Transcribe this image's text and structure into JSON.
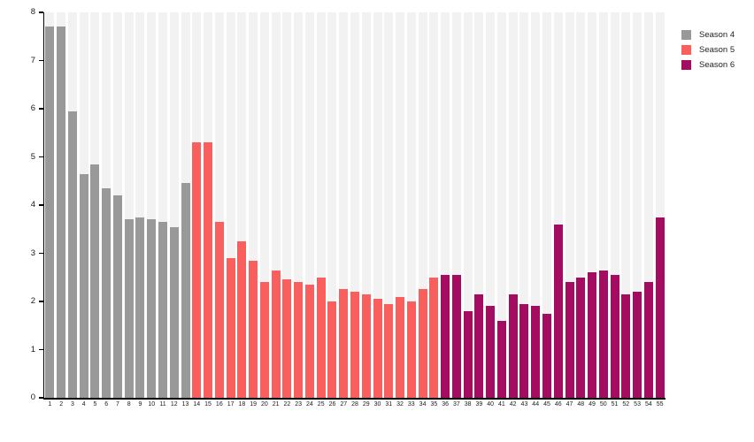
{
  "chart_data": {
    "type": "bar",
    "title": "",
    "xlabel": "",
    "ylabel": "",
    "ylim": [
      0,
      8
    ],
    "yticks": [
      0,
      1,
      2,
      3,
      4,
      5,
      6,
      7,
      8
    ],
    "grid": "striped-column-background",
    "legend_position": "top-right",
    "series": [
      {
        "name": "Season 4",
        "color": "#999999",
        "episodes": [
          1,
          2,
          3,
          4,
          5,
          6,
          7,
          8,
          9,
          10,
          11,
          12,
          13
        ],
        "values": [
          7.7,
          7.7,
          5.95,
          4.65,
          4.85,
          4.35,
          4.2,
          3.7,
          3.75,
          3.7,
          3.65,
          3.55,
          4.45
        ]
      },
      {
        "name": "Season 5",
        "color": "#f95f5c",
        "episodes": [
          14,
          15,
          16,
          17,
          18,
          19,
          20,
          21,
          22,
          23,
          24,
          25,
          26,
          27,
          28,
          29,
          30,
          31,
          32,
          33,
          34,
          35
        ],
        "values": [
          5.3,
          5.3,
          3.65,
          2.9,
          3.25,
          2.85,
          2.4,
          2.65,
          2.45,
          2.4,
          2.35,
          2.5,
          2.0,
          2.25,
          2.2,
          2.15,
          2.05,
          1.95,
          2.1,
          2.0,
          2.25,
          2.5
        ]
      },
      {
        "name": "Season 6",
        "color": "#a30c60",
        "episodes": [
          36,
          37,
          38,
          39,
          40,
          41,
          42,
          43,
          44,
          45,
          46,
          47,
          48,
          49,
          50,
          51,
          52,
          53,
          54,
          55
        ],
        "values": [
          2.55,
          2.55,
          1.8,
          2.15,
          1.9,
          1.6,
          2.15,
          1.95,
          1.9,
          1.75,
          3.6,
          2.4,
          2.5,
          2.6,
          2.65,
          2.55,
          2.15,
          2.2,
          2.4,
          3.75
        ]
      }
    ]
  },
  "colors": {
    "background": "#ffffff",
    "column_stripe": "#f2f2f2",
    "axis_line": "#000000",
    "tick_label": "#1a1a1a"
  }
}
